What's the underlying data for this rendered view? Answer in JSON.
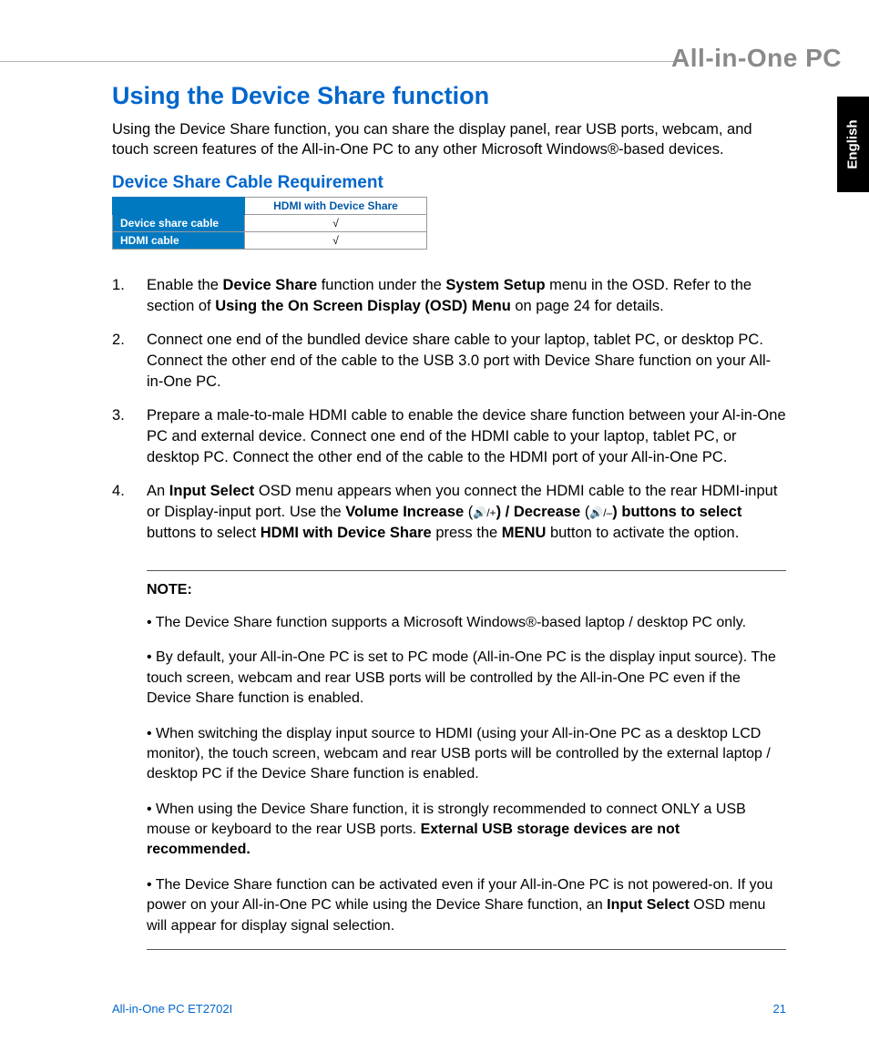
{
  "brand": "All-in-One PC",
  "language_tab": "English",
  "heading": "Using the Device Share function",
  "intro": "Using the Device Share function, you can share the display panel, rear USB ports, webcam, and touch screen features of the All-in-One PC to any other Microsoft Windows®-based devices.",
  "subheading": "Device Share Cable Requirement",
  "table": {
    "col_header": "HDMI with Device Share",
    "rows": [
      {
        "label": "Device share cable",
        "value": "√"
      },
      {
        "label": "HDMI cable",
        "value": "√"
      }
    ],
    "colors": {
      "side_bg": "#0079c1",
      "side_fg": "#ffffff",
      "top_fg": "#0058a6"
    }
  },
  "steps": {
    "s1_a": "Enable the ",
    "s1_b": "Device Share",
    "s1_c": " function under the ",
    "s1_d": "System Setup",
    "s1_e": " menu in the OSD. Refer to the section of ",
    "s1_f": "Using the On Screen Display (OSD) Menu",
    "s1_g": " on page 24 for details.",
    "s2": "Connect one end of the bundled device share cable to your laptop, tablet PC, or desktop PC. Connect the other end of the cable to the USB 3.0 port with Device Share function on your All-in-One PC.",
    "s3": "Prepare a male-to-male HDMI cable to enable the device share function between your Al-in-One PC and external device. Connect one end of the HDMI cable to your laptop, tablet PC, or desktop PC. Connect the other end of the cable to the HDMI port of your All-in-One PC.",
    "s4_a": "An ",
    "s4_b": "Input Select",
    "s4_c": " OSD menu appears when you connect the HDMI cable to the rear HDMI-input or Display-input port. Use the ",
    "s4_d": "Volume Increase",
    "s4_e": " (",
    "s4_vol_inc": "🔊/+",
    "s4_f": ") / ",
    "s4_g": "Decrease",
    "s4_h": " (",
    "s4_vol_dec": "🔊/–",
    "s4_i": ") buttons to select ",
    "s4_j": "HDMI with Device Share",
    "s4_k": " press the ",
    "s4_l": "MENU",
    "s4_m": " button to activate the option."
  },
  "note": {
    "label": "NOTE:",
    "n1": "• The Device Share function supports a Microsoft Windows®-based laptop / desktop PC only.",
    "n2": "• By default, your All-in-One PC is set to PC mode (All-in-One PC is the display input source). The touch screen, webcam and rear USB ports will be controlled by the All-in-One PC even if the Device Share function is enabled.",
    "n3": "• When switching the display input source to HDMI (using your All-in-One PC as a desktop LCD monitor), the touch screen, webcam and rear USB ports will be controlled by the external laptop / desktop PC if the Device Share function is enabled.",
    "n4_a": "• When using the Device Share function, it is strongly recommended to connect ONLY a USB mouse or keyboard to the rear USB ports. ",
    "n4_b": "External USB storage devices are not recommended.",
    "n5_a": "• The Device Share function can be activated even if your All-in-One PC is not powered-on. If you power on your All-in-One PC while using the Device Share function, an ",
    "n5_b": "Input Select",
    "n5_c": " OSD menu will appear for display signal selection."
  },
  "footer": {
    "model": "All-in-One PC ET2702I",
    "page": "21"
  },
  "colors": {
    "heading": "#0066cc",
    "brand": "#8a8a8a",
    "rule": "#b0b0b0"
  }
}
